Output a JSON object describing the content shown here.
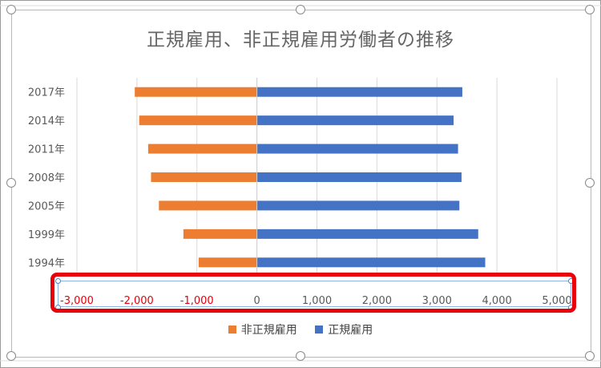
{
  "chart_data": {
    "type": "bar",
    "orientation": "horizontal",
    "stacked": true,
    "title": "正規雇用、非正規雇用労働者の推移",
    "categories": [
      "2017年",
      "2014年",
      "2011年",
      "2008年",
      "2005年",
      "1999年",
      "1994年"
    ],
    "series": [
      {
        "name": "非正規雇用",
        "color": "#ed7d31",
        "values": [
          -2036,
          -1962,
          -1813,
          -1765,
          -1634,
          -1225,
          -971
        ]
      },
      {
        "name": "正規雇用",
        "color": "#4472c4",
        "values": [
          3423,
          3278,
          3352,
          3410,
          3374,
          3688,
          3805
        ]
      }
    ],
    "xlim": [
      -3000,
      5000
    ],
    "xticks": [
      {
        "value": -3000,
        "label": "-3,000",
        "negative": true
      },
      {
        "value": -2000,
        "label": "-2,000",
        "negative": true
      },
      {
        "value": -1000,
        "label": "-1,000",
        "negative": true
      },
      {
        "value": 0,
        "label": "0",
        "negative": false
      },
      {
        "value": 1000,
        "label": "1,000",
        "negative": false
      },
      {
        "value": 2000,
        "label": "2,000",
        "negative": false
      },
      {
        "value": 3000,
        "label": "3,000",
        "negative": false
      },
      {
        "value": 4000,
        "label": "4,000",
        "negative": false
      },
      {
        "value": 5000,
        "label": "5,000",
        "negative": false
      }
    ],
    "negative_tick_color": "#e8000b",
    "grid": true,
    "legend_position": "bottom"
  }
}
